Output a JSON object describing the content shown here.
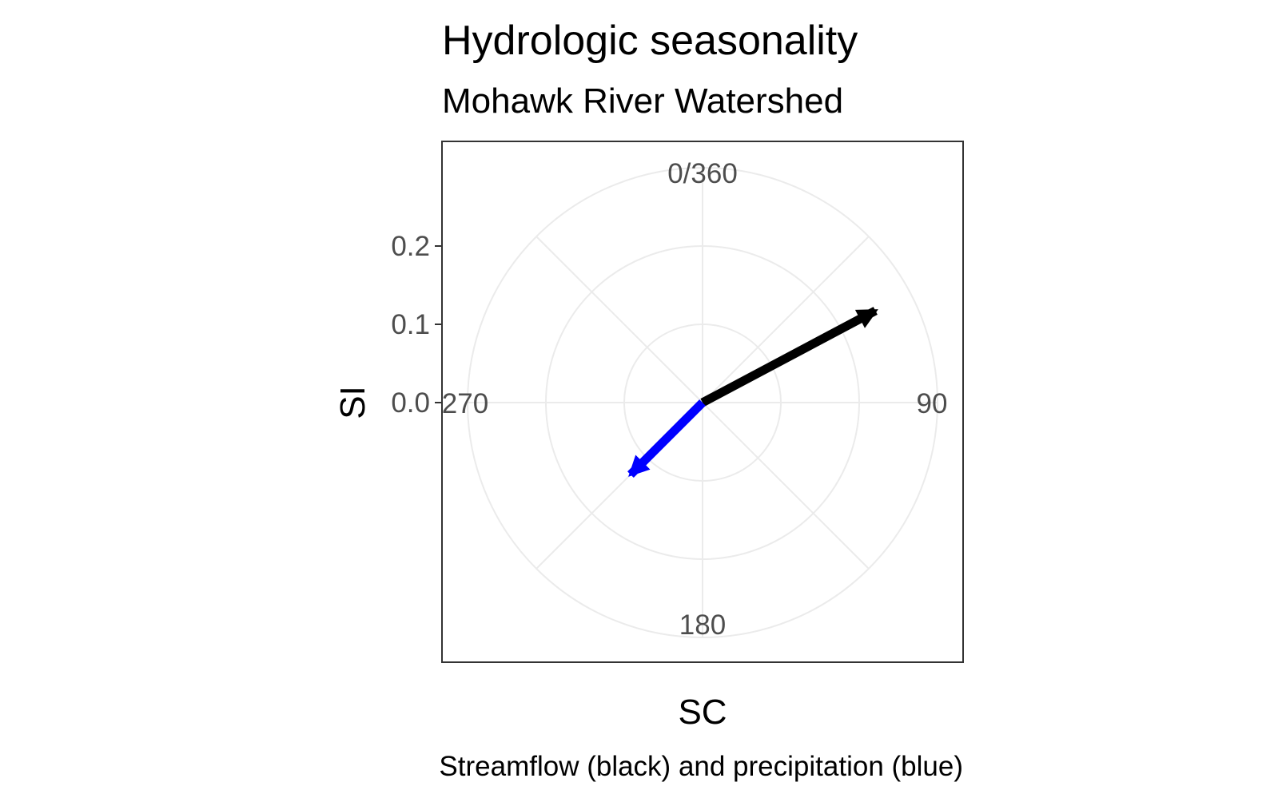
{
  "chart_data": {
    "type": "polar",
    "title": "Hydrologic seasonality",
    "subtitle": "Mohawk River Watershed",
    "xlabel": "SC",
    "ylabel": "SI",
    "caption": "Streamflow (black) and precipitation (blue)",
    "angle_unit": "degrees",
    "angle_ticks": [
      {
        "value": 0,
        "label": "0/360"
      },
      {
        "value": 90,
        "label": "90"
      },
      {
        "value": 180,
        "label": "180"
      },
      {
        "value": 270,
        "label": "270"
      }
    ],
    "radial_ticks": [
      {
        "value": 0.0,
        "label": "0.0"
      },
      {
        "value": 0.1,
        "label": "0.1"
      },
      {
        "value": 0.2,
        "label": "0.2"
      }
    ],
    "radial_max": 0.3,
    "grid": true,
    "series": [
      {
        "sc": 62,
        "si": 0.25,
        "color": "#000000"
      },
      {
        "sc": 225,
        "si": 0.13,
        "color": "#0000ff"
      }
    ]
  }
}
